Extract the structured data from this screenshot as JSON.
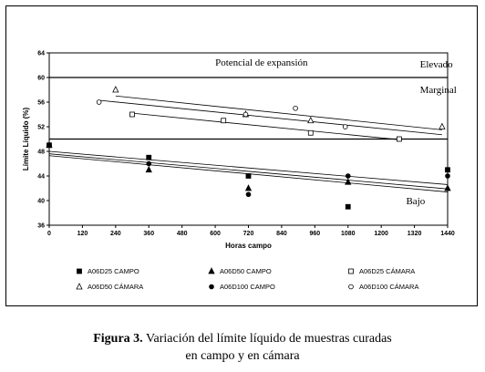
{
  "chart_data": {
    "type": "scatter",
    "xlabel": "Horas campo",
    "ylabel": "Límite Líquido (%)",
    "xlim": [
      0,
      1440
    ],
    "ylim": [
      36,
      64
    ],
    "xticks": [
      0,
      120,
      240,
      360,
      480,
      600,
      720,
      840,
      960,
      1080,
      1200,
      1320,
      1440
    ],
    "yticks": [
      36,
      40,
      44,
      48,
      52,
      56,
      60,
      64
    ],
    "grid": false,
    "legend_position": "bottom",
    "reference_lines": [
      {
        "y": 60,
        "label": ""
      },
      {
        "y": 50,
        "label": ""
      }
    ],
    "annotations": [
      {
        "text": "Potencial de expansión",
        "x": 600,
        "y": 61.9
      },
      {
        "text": "Elevado",
        "x": 1340,
        "y": 61.6
      },
      {
        "text": "Marginal",
        "x": 1340,
        "y": 57.5
      },
      {
        "text": "Bajo",
        "x": 1290,
        "y": 39.4
      }
    ],
    "series": [
      {
        "name": "A06D25 CAMPO",
        "marker": "filled-square",
        "points": [
          [
            0,
            49
          ],
          [
            360,
            47
          ],
          [
            720,
            44
          ],
          [
            1080,
            39
          ],
          [
            1440,
            45
          ]
        ],
        "trend": [
          [
            0,
            48
          ],
          [
            1440,
            42.6
          ]
        ]
      },
      {
        "name": "A06D50 CAMPO",
        "marker": "filled-triangle",
        "points": [
          [
            0,
            49
          ],
          [
            360,
            45
          ],
          [
            720,
            42
          ],
          [
            1080,
            43
          ],
          [
            1440,
            42
          ]
        ],
        "trend": [
          [
            0,
            47.6
          ],
          [
            1440,
            41.9
          ]
        ]
      },
      {
        "name": "A06D25 CÁMARA",
        "marker": "open-square",
        "points": [
          [
            300,
            54
          ],
          [
            630,
            53
          ],
          [
            945,
            51
          ],
          [
            1265,
            50
          ]
        ],
        "trend": [
          [
            300,
            54.2
          ],
          [
            1265,
            49.9
          ]
        ]
      },
      {
        "name": "A06D50 CÁMARA",
        "marker": "open-triangle",
        "points": [
          [
            240,
            58
          ],
          [
            710,
            54
          ],
          [
            945,
            53
          ],
          [
            1420,
            52
          ]
        ],
        "trend": [
          [
            240,
            57
          ],
          [
            1420,
            51.5
          ]
        ]
      },
      {
        "name": "A06D100 CAMPO",
        "marker": "filled-circle",
        "points": [
          [
            0,
            49
          ],
          [
            360,
            46
          ],
          [
            720,
            41
          ],
          [
            1080,
            44
          ],
          [
            1440,
            44
          ]
        ],
        "trend": [
          [
            0,
            47.3
          ],
          [
            1440,
            41.4
          ]
        ]
      },
      {
        "name": "A06D100 CÁMARA",
        "marker": "open-circle",
        "points": [
          [
            180,
            56
          ],
          [
            710,
            54
          ],
          [
            890,
            55
          ],
          [
            1070,
            52
          ]
        ],
        "trend": [
          [
            180,
            56.3
          ],
          [
            1420,
            50.7
          ]
        ]
      }
    ]
  },
  "caption": {
    "label": "Figura 3.",
    "line1": "Variación del límite líquido de muestras curadas",
    "line2": "en campo y en cámara"
  }
}
